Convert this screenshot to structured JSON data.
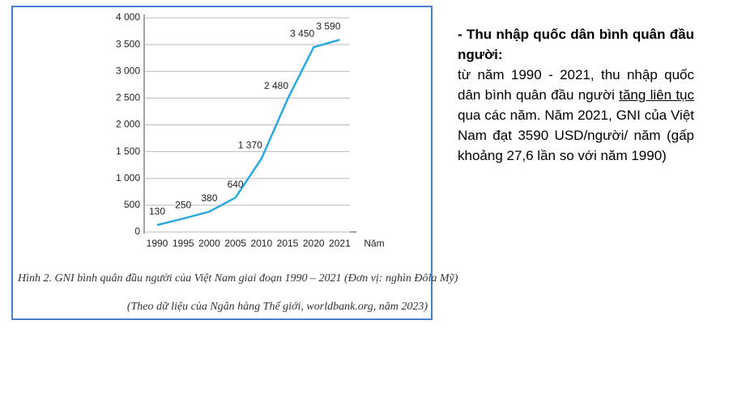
{
  "chart_data": {
    "type": "line",
    "categories": [
      "1990",
      "1995",
      "2000",
      "2005",
      "2010",
      "2015",
      "2020",
      "2021"
    ],
    "series": [
      {
        "name": "GNI",
        "color": "#2aa9df",
        "values": [
          130,
          250,
          380,
          640,
          1370,
          2480,
          3450,
          3590
        ],
        "value_labels": [
          "130",
          "250",
          "380",
          "640",
          "1 370",
          "2 480",
          "3 450",
          "3 590"
        ]
      }
    ],
    "ylim": [
      0,
      4000
    ],
    "yticks": [
      0,
      500,
      {
        "value": 1000,
        "label": "1 000"
      },
      {
        "value": 1500,
        "label": "1 500"
      },
      {
        "value": 2000,
        "label": "2 000"
      },
      {
        "value": 2500,
        "label": "2 500"
      },
      {
        "value": 3000,
        "label": "3 000"
      },
      {
        "value": 3500,
        "label": "3 500"
      },
      {
        "value": 4000,
        "label": "4 000"
      }
    ],
    "grid": true,
    "x_label": "Năm",
    "caption": "Hình 2. GNI bình quân đầu người của Việt Nam giai đoạn 1990 – 2021 (Đơn vị: nghìn Đôla Mỹ)",
    "source": "(Theo dữ liệu của Ngân hàng Thế giới, worldbank.org, năm 2023)"
  },
  "text": {
    "heading": "- Thu nhập quốc dân bình quân đầu người:",
    "intro": "từ năm 1990 - 2021, thu nhập quốc dân bình quân đầu người ",
    "underlined": "tăng liên tục",
    "rest": " qua các năm. Năm 2021, GNI của Việt Nam đạt 3590 USD/người/ năm (gấp khoảng 27,6 lần so với năm 1990)"
  }
}
